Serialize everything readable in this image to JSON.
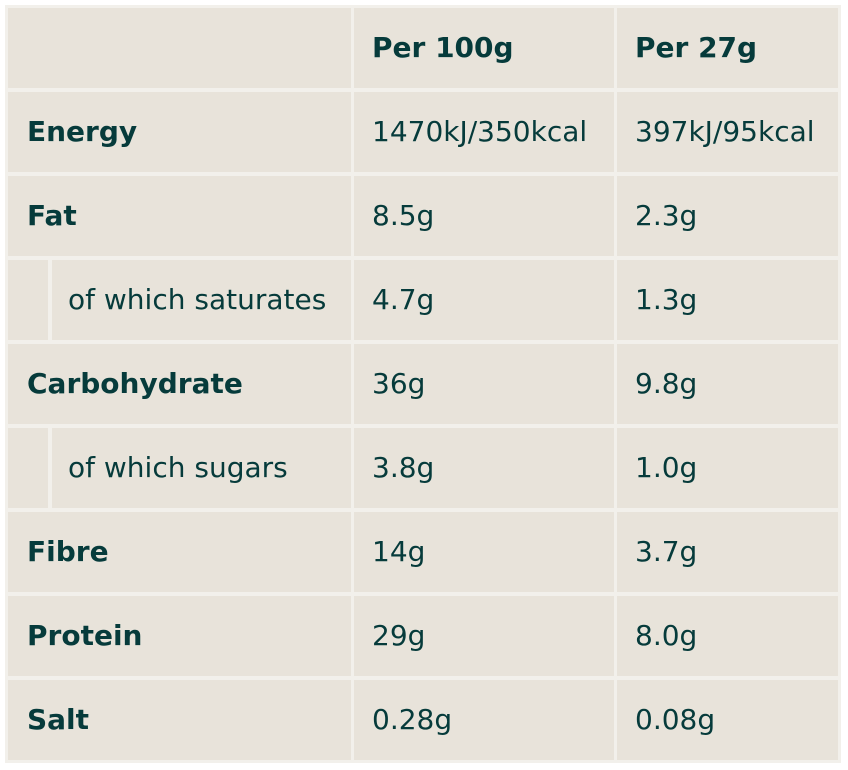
{
  "table": {
    "header": {
      "corner": "",
      "col_per_100g": "Per 100g",
      "col_per_portion": "Per 27g"
    },
    "rows": [
      {
        "label": "Energy",
        "sub": false,
        "per_100g": "1470kJ/350kcal",
        "per_portion": "397kJ/95kcal"
      },
      {
        "label": "Fat",
        "sub": false,
        "per_100g": "8.5g",
        "per_portion": "2.3g"
      },
      {
        "label": "of which saturates",
        "sub": true,
        "per_100g": "4.7g",
        "per_portion": "1.3g"
      },
      {
        "label": "Carbohydrate",
        "sub": false,
        "per_100g": "36g",
        "per_portion": "9.8g"
      },
      {
        "label": "of which sugars",
        "sub": true,
        "per_100g": "3.8g",
        "per_portion": "1.0g"
      },
      {
        "label": "Fibre",
        "sub": false,
        "per_100g": "14g",
        "per_portion": "3.7g"
      },
      {
        "label": "Protein",
        "sub": false,
        "per_100g": "29g",
        "per_portion": "8.0g"
      },
      {
        "label": "Salt",
        "sub": false,
        "per_100g": "0.28g",
        "per_portion": "0.08g"
      }
    ]
  }
}
